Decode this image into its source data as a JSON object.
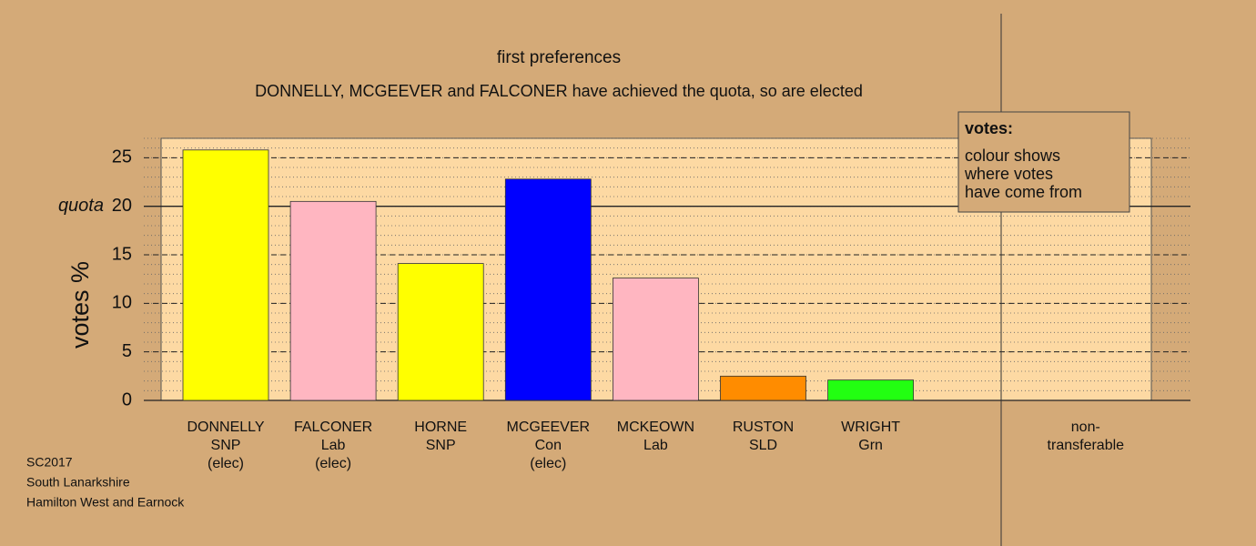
{
  "chart_data": {
    "type": "bar",
    "title": "first preferences",
    "subtitle": "DONNELLY, MCGEEVER and FALCONER have achieved the quota, so are elected",
    "y_label": "votes %",
    "categories": [
      [
        "DONNELLY",
        "SNP",
        "(elec)"
      ],
      [
        "FALCONER",
        "Lab",
        "(elec)"
      ],
      [
        "HORNE",
        "SNP"
      ],
      [
        "MCGEEVER",
        "Con",
        "(elec)"
      ],
      [
        "MCKEOWN",
        "Lab"
      ],
      [
        "RUSTON",
        "SLD"
      ],
      [
        "WRIGHT",
        "Grn"
      ],
      null,
      [
        "non-",
        "transferable"
      ]
    ],
    "values": [
      25.8,
      20.5,
      14.1,
      22.8,
      12.6,
      2.5,
      2.1,
      null,
      0
    ],
    "colors": [
      "#ffff00",
      "#ffb6c1",
      "#ffff00",
      "#0000ff",
      "#ffb6c1",
      "#ff8c00",
      "#22ff11",
      null,
      "#d4aa78"
    ],
    "ylim": [
      0,
      27
    ],
    "yticks": [
      0,
      5,
      10,
      15,
      20,
      25
    ],
    "minor_grid_step": 1,
    "quota": {
      "value": 20,
      "label": "quota"
    },
    "legend": {
      "title": "votes:",
      "lines": [
        "colour shows",
        "where votes",
        "have come from"
      ]
    },
    "footnote": [
      "SC2017",
      "South Lanarkshire",
      "Hamilton West and Earnock"
    ]
  }
}
